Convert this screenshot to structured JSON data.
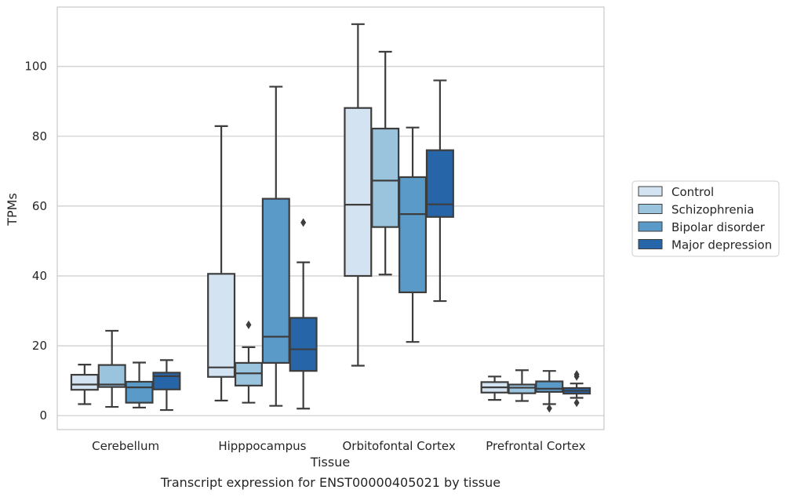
{
  "chart_data": {
    "type": "box",
    "title": "",
    "caption": "Transcript expression for ENST00000405021 by tissue",
    "xlabel": "Tissue",
    "ylabel": "TPMs",
    "ylim": [
      -4,
      117
    ],
    "yticks": [
      0,
      20,
      40,
      60,
      80,
      100
    ],
    "grid": "y",
    "legend_position": "right",
    "categories": [
      "Cerebellum",
      "Hipppocampus",
      "Orbitofontal Cortex",
      "Prefrontal Cortex"
    ],
    "series": [
      {
        "name": "Control",
        "color": "#d4e3f2",
        "boxes": [
          {
            "whislo": 3.3,
            "q1": 7.4,
            "med": 8.9,
            "q3": 11.7,
            "whishi": 14.6,
            "fliers": []
          },
          {
            "whislo": 4.3,
            "q1": 11.1,
            "med": 13.8,
            "q3": 40.6,
            "whishi": 82.9,
            "fliers": []
          },
          {
            "whislo": 14.3,
            "q1": 40.0,
            "med": 60.4,
            "q3": 88.1,
            "whishi": 112.1,
            "fliers": []
          },
          {
            "whislo": 4.5,
            "q1": 6.6,
            "med": 8.1,
            "q3": 9.6,
            "whishi": 11.2,
            "fliers": []
          }
        ]
      },
      {
        "name": "Schizophrenia",
        "color": "#9ac3de",
        "boxes": [
          {
            "whislo": 2.5,
            "q1": 8.2,
            "med": 8.9,
            "q3": 14.5,
            "whishi": 24.3,
            "fliers": []
          },
          {
            "whislo": 3.7,
            "q1": 8.6,
            "med": 12.1,
            "q3": 15.1,
            "whishi": 19.6,
            "fliers": [
              26.0
            ]
          },
          {
            "whislo": 40.4,
            "q1": 54.0,
            "med": 67.3,
            "q3": 82.2,
            "whishi": 104.2,
            "fliers": []
          },
          {
            "whislo": 4.2,
            "q1": 6.4,
            "med": 8.0,
            "q3": 8.9,
            "whishi": 13.0,
            "fliers": []
          }
        ]
      },
      {
        "name": "Bipolar disorder",
        "color": "#5a9ac9",
        "boxes": [
          {
            "whislo": 2.3,
            "q1": 3.7,
            "med": 8.1,
            "q3": 9.7,
            "whishi": 15.2,
            "fliers": []
          },
          {
            "whislo": 2.8,
            "q1": 15.1,
            "med": 22.6,
            "q3": 62.1,
            "whishi": 94.2,
            "fliers": []
          },
          {
            "whislo": 21.1,
            "q1": 35.3,
            "med": 57.7,
            "q3": 68.3,
            "whishi": 82.5,
            "fliers": []
          },
          {
            "whislo": 3.3,
            "q1": 6.8,
            "med": 7.7,
            "q3": 9.8,
            "whishi": 12.8,
            "fliers": [
              2.1
            ]
          }
        ]
      },
      {
        "name": "Major depression",
        "color": "#2765a9",
        "boxes": [
          {
            "whislo": 1.6,
            "q1": 7.5,
            "med": 11.3,
            "q3": 12.3,
            "whishi": 15.9,
            "fliers": []
          },
          {
            "whislo": 2.0,
            "q1": 12.8,
            "med": 19.0,
            "q3": 28.0,
            "whishi": 43.9,
            "fliers": [
              55.3
            ]
          },
          {
            "whislo": 32.8,
            "q1": 56.9,
            "med": 60.5,
            "q3": 76.0,
            "whishi": 96.0,
            "fliers": []
          },
          {
            "whislo": 5.1,
            "q1": 6.3,
            "med": 7.1,
            "q3": 7.9,
            "whishi": 9.2,
            "fliers": [
              3.7,
              11.2,
              11.8
            ]
          }
        ]
      }
    ]
  }
}
